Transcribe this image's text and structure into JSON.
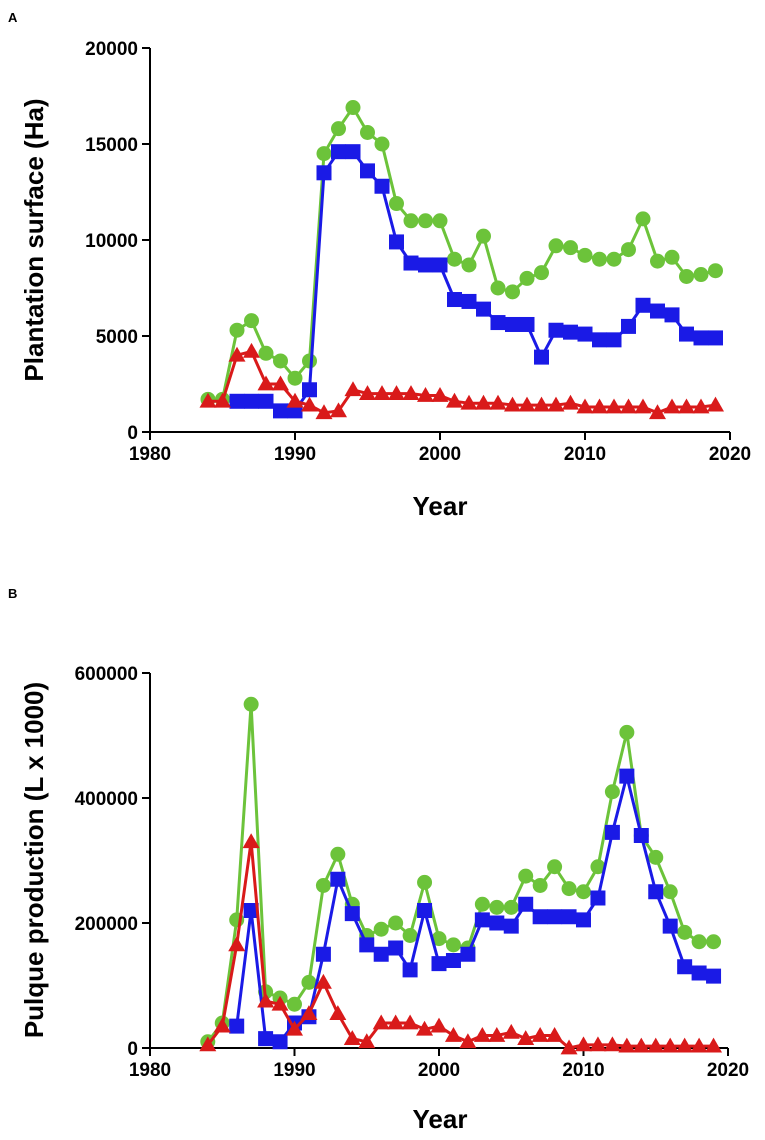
{
  "chart_data": [
    {
      "type": "line",
      "panel_label": "A",
      "xlabel": "Year",
      "ylabel": "Plantation surface (Ha)",
      "xlim": [
        1980,
        2020
      ],
      "ylim": [
        0,
        20000
      ],
      "x_ticks": [
        1980,
        1990,
        2000,
        2010,
        2020
      ],
      "y_ticks": [
        0,
        5000,
        10000,
        15000,
        20000
      ],
      "x": [
        1984,
        1985,
        1986,
        1987,
        1988,
        1989,
        1990,
        1991,
        1992,
        1993,
        1994,
        1995,
        1996,
        1997,
        1998,
        1999,
        2000,
        2001,
        2002,
        2003,
        2004,
        2005,
        2006,
        2007,
        2008,
        2009,
        2010,
        2011,
        2012,
        2013,
        2014,
        2015,
        2016,
        2017,
        2018,
        2019
      ],
      "series": [
        {
          "name": "green-circle-series",
          "color": "#6cc33a",
          "marker": "circle",
          "x": [
            1984,
            1985,
            1986,
            1987,
            1988,
            1989,
            1990,
            1991,
            1992,
            1993,
            1994,
            1995,
            1996,
            1997,
            1998,
            1999,
            2000,
            2001,
            2002,
            2003,
            2004,
            2005,
            2006,
            2007,
            2008,
            2009,
            2010,
            2011,
            2012,
            2013,
            2014,
            2015,
            2016,
            2017,
            2018,
            2019
          ],
          "values": [
            1700,
            1700,
            5300,
            5800,
            4100,
            3700,
            2800,
            3700,
            14500,
            15800,
            16900,
            15600,
            15000,
            11900,
            11000,
            11000,
            11000,
            9000,
            8700,
            10200,
            7500,
            7300,
            8000,
            8300,
            9700,
            9600,
            9200,
            9000,
            9000,
            9500,
            11100,
            8900,
            9100,
            8100,
            8200,
            8400
          ]
        },
        {
          "name": "blue-square-series",
          "color": "#1a1ae6",
          "marker": "square",
          "x": [
            1986,
            1987,
            1988,
            1989,
            1990,
            1991,
            1992,
            1993,
            1994,
            1995,
            1996,
            1997,
            1998,
            1999,
            2000,
            2001,
            2002,
            2003,
            2004,
            2005,
            2006,
            2007,
            2008,
            2009,
            2010,
            2011,
            2012,
            2013,
            2014,
            2015,
            2016,
            2017,
            2018,
            2019
          ],
          "values": [
            1600,
            1600,
            1600,
            1100,
            1100,
            2200,
            13500,
            14600,
            14600,
            13600,
            12800,
            9900,
            8800,
            8700,
            8700,
            6900,
            6800,
            6400,
            5700,
            5600,
            5600,
            3900,
            5300,
            5200,
            5100,
            4800,
            4800,
            5500,
            6600,
            6300,
            6100,
            5100,
            4900,
            4900
          ]
        },
        {
          "name": "red-triangle-series",
          "color": "#d91a1a",
          "marker": "triangle",
          "x": [
            1984,
            1985,
            1986,
            1987,
            1988,
            1989,
            1990,
            1991,
            1992,
            1993,
            1994,
            1995,
            1996,
            1997,
            1998,
            1999,
            2000,
            2001,
            2002,
            2003,
            2004,
            2005,
            2006,
            2007,
            2008,
            2009,
            2010,
            2011,
            2012,
            2013,
            2014,
            2015,
            2016,
            2017,
            2018,
            2019
          ],
          "values": [
            1600,
            1600,
            4000,
            4200,
            2500,
            2500,
            1600,
            1400,
            1000,
            1100,
            2200,
            2000,
            2000,
            2000,
            2000,
            1900,
            1900,
            1600,
            1500,
            1500,
            1500,
            1400,
            1400,
            1400,
            1400,
            1500,
            1300,
            1300,
            1300,
            1300,
            1300,
            1000,
            1300,
            1300,
            1300,
            1400
          ]
        }
      ]
    },
    {
      "type": "line",
      "panel_label": "B",
      "xlabel": "Year",
      "ylabel": "Pulque production (L x 1000)",
      "xlim": [
        1980,
        2020
      ],
      "ylim": [
        0,
        600000
      ],
      "x_ticks": [
        1980,
        1990,
        2000,
        2010,
        2020
      ],
      "y_ticks": [
        0,
        200000,
        400000,
        600000
      ],
      "series": [
        {
          "name": "green-circle-series",
          "color": "#6cc33a",
          "marker": "circle",
          "x": [
            1984,
            1985,
            1986,
            1987,
            1988,
            1989,
            1990,
            1991,
            1992,
            1993,
            1994,
            1995,
            1996,
            1997,
            1998,
            1999,
            2000,
            2001,
            2002,
            2003,
            2004,
            2005,
            2006,
            2007,
            2008,
            2009,
            2010,
            2011,
            2012,
            2013,
            2014,
            2015,
            2016,
            2017,
            2018,
            2019
          ],
          "values": [
            10000,
            40000,
            205000,
            550000,
            90000,
            80000,
            70000,
            105000,
            260000,
            310000,
            230000,
            180000,
            190000,
            200000,
            180000,
            265000,
            175000,
            165000,
            160000,
            230000,
            225000,
            225000,
            275000,
            260000,
            290000,
            255000,
            250000,
            290000,
            410000,
            505000,
            340000,
            305000,
            250000,
            185000,
            170000,
            170000
          ]
        },
        {
          "name": "blue-square-series",
          "color": "#1a1ae6",
          "marker": "square",
          "x": [
            1986,
            1987,
            1988,
            1989,
            1990,
            1991,
            1992,
            1993,
            1994,
            1995,
            1996,
            1997,
            1998,
            1999,
            2000,
            2001,
            2002,
            2003,
            2004,
            2005,
            2006,
            2007,
            2008,
            2009,
            2010,
            2011,
            2012,
            2013,
            2014,
            2015,
            2016,
            2017,
            2018,
            2019
          ],
          "values": [
            35000,
            220000,
            15000,
            10000,
            40000,
            50000,
            150000,
            270000,
            215000,
            165000,
            150000,
            160000,
            125000,
            220000,
            135000,
            140000,
            150000,
            205000,
            200000,
            195000,
            230000,
            210000,
            210000,
            210000,
            205000,
            240000,
            345000,
            435000,
            340000,
            250000,
            195000,
            130000,
            120000,
            115000
          ]
        },
        {
          "name": "red-triangle-series",
          "color": "#d91a1a",
          "marker": "triangle",
          "x": [
            1984,
            1985,
            1986,
            1987,
            1988,
            1989,
            1990,
            1991,
            1992,
            1993,
            1994,
            1995,
            1996,
            1997,
            1998,
            1999,
            2000,
            2001,
            2002,
            2003,
            2004,
            2005,
            2006,
            2007,
            2008,
            2009,
            2010,
            2011,
            2012,
            2013,
            2014,
            2015,
            2016,
            2017,
            2018,
            2019
          ],
          "values": [
            5000,
            35000,
            165000,
            330000,
            75000,
            70000,
            30000,
            55000,
            105000,
            55000,
            15000,
            10000,
            40000,
            40000,
            40000,
            30000,
            35000,
            20000,
            10000,
            20000,
            20000,
            25000,
            15000,
            20000,
            20000,
            0,
            5000,
            5000,
            5000,
            3000,
            3000,
            3000,
            3000,
            3000,
            3000,
            3000
          ]
        }
      ]
    }
  ]
}
